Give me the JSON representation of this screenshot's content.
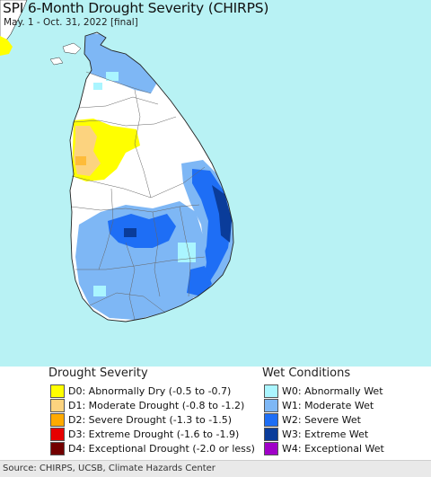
{
  "title": "SPI 6-Month Drought Severity (CHIRPS)",
  "subtitle": "May. 1 - Oct. 31, 2022 [final]",
  "colors": {
    "ocean": "#b8f2f4",
    "land_base": "#ffffff",
    "D0": "#ffff00",
    "D1": "#fcd37f",
    "D2": "#ffaa00",
    "D3": "#e60000",
    "D4": "#730000",
    "W0": "#aaf5ff",
    "W1": "#7eb7f5",
    "W2": "#1e6ef5",
    "W3": "#0a3c9a",
    "W4": "#a000c8"
  },
  "legend": {
    "drought_heading": "Drought Severity",
    "wet_heading": "Wet Conditions",
    "drought_items": [
      {
        "code": "D0",
        "label": "D0: Abnormally Dry (-0.5 to -0.7)"
      },
      {
        "code": "D1",
        "label": "D1: Moderate Drought (-0.8 to -1.2)"
      },
      {
        "code": "D2",
        "label": "D2: Severe Drought (-1.3 to -1.5)"
      },
      {
        "code": "D3",
        "label": "D3: Extreme Drought (-1.6 to -1.9)"
      },
      {
        "code": "D4",
        "label": "D4: Exceptional Drought (-2.0 or less)"
      }
    ],
    "wet_items": [
      {
        "code": "W0",
        "label": "W0: Abnormally Wet"
      },
      {
        "code": "W1",
        "label": "W1: Moderate Wet"
      },
      {
        "code": "W2",
        "label": "W2: Severe Wet"
      },
      {
        "code": "W3",
        "label": "W3: Extreme Wet"
      },
      {
        "code": "W4",
        "label": "W4: Exceptional Wet"
      }
    ]
  },
  "source": "Source: CHIRPS, UCSB, Climate Hazards Center"
}
